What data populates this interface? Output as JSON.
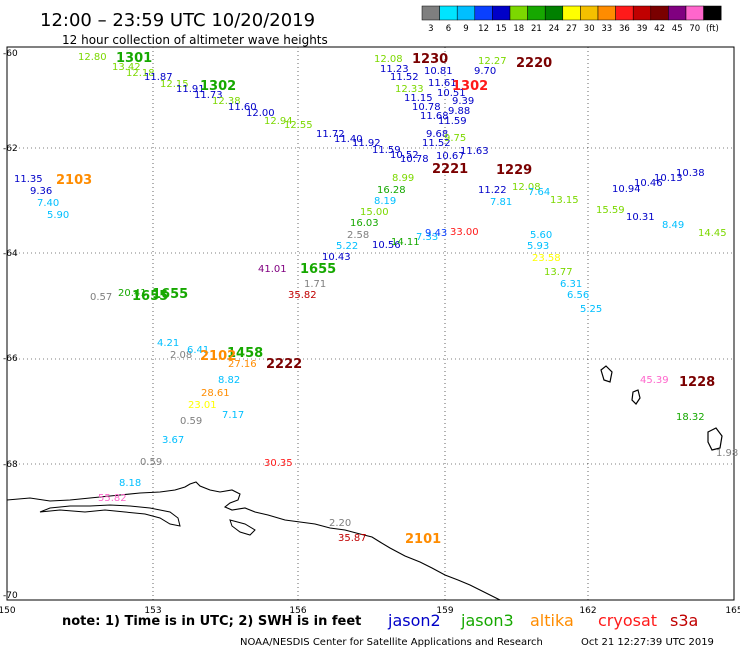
{
  "header": {
    "title": "12:00 – 23:59 UTC 10/20/2019",
    "subtitle": "12 hour collection of altimeter wave heights"
  },
  "colorbar": {
    "labels": [
      "3",
      "6",
      "9",
      "12",
      "15",
      "18",
      "21",
      "24",
      "27",
      "30",
      "33",
      "36",
      "39",
      "42",
      "45",
      "70",
      "(ft)"
    ],
    "colors": [
      "#7f7f7f",
      "#00e5ff",
      "#00bfff",
      "#0a40ff",
      "#0000c8",
      "#7cd800",
      "#16a800",
      "#008000",
      "#ffff00",
      "#f4c000",
      "#ff8c00",
      "#ff1a1a",
      "#c00000",
      "#7a0000",
      "#800080",
      "#ff66cc",
      "#000000"
    ]
  },
  "map": {
    "lon_ticks": [
      "150",
      "153",
      "156",
      "159",
      "162",
      "165"
    ],
    "lat_ticks": [
      "-60",
      "-62",
      "-64",
      "-66",
      "-68",
      "-70"
    ]
  },
  "observations": [
    {
      "t": "12.80",
      "c": "#7cd800"
    },
    {
      "t": "13.42",
      "c": "#7cd800"
    },
    {
      "t": "12.18",
      "c": "#7cd800"
    },
    {
      "t": "11.87",
      "c": "#0000c8"
    },
    {
      "t": "12.15",
      "c": "#7cd800"
    },
    {
      "t": "11.91",
      "c": "#0000c8"
    },
    {
      "t": "11.73",
      "c": "#0000c8"
    },
    {
      "t": "12.38",
      "c": "#7cd800"
    },
    {
      "t": "11.60",
      "c": "#0000c8"
    },
    {
      "t": "12.00",
      "c": "#0000c8"
    },
    {
      "t": "12.94",
      "c": "#7cd800"
    },
    {
      "t": "12.55",
      "c": "#7cd800"
    },
    {
      "t": "11.72",
      "c": "#0000c8"
    },
    {
      "t": "11.40",
      "c": "#0000c8"
    },
    {
      "t": "11.92",
      "c": "#0000c8"
    },
    {
      "t": "11.59",
      "c": "#0000c8"
    },
    {
      "t": "10.52",
      "c": "#0000c8"
    },
    {
      "t": "10.78",
      "c": "#0000c8"
    },
    {
      "t": "12.08",
      "c": "#7cd800"
    },
    {
      "t": "11.23",
      "c": "#0000c8"
    },
    {
      "t": "11.52",
      "c": "#0000c8"
    },
    {
      "t": "12.33",
      "c": "#7cd800"
    },
    {
      "t": "11.15",
      "c": "#0000c8"
    },
    {
      "t": "10.78",
      "c": "#0000c8"
    },
    {
      "t": "11.68",
      "c": "#0000c8"
    },
    {
      "t": "9.68",
      "c": "#0000c8"
    },
    {
      "t": "11.52",
      "c": "#0000c8"
    },
    {
      "t": "10.81",
      "c": "#0000c8"
    },
    {
      "t": "11.61",
      "c": "#0000c8"
    },
    {
      "t": "10.51",
      "c": "#0000c8"
    },
    {
      "t": "9.39",
      "c": "#0000c8"
    },
    {
      "t": "9.88",
      "c": "#0000c8"
    },
    {
      "t": "11.59",
      "c": "#0000c8"
    },
    {
      "t": "9.75",
      "c": "#7cd800"
    },
    {
      "t": "11.63",
      "c": "#0000c8"
    },
    {
      "t": "12.27",
      "c": "#7cd800"
    },
    {
      "t": "9.70",
      "c": "#0000c8"
    },
    {
      "t": "10.67",
      "c": "#0000c8"
    },
    {
      "t": "11.35",
      "c": "#0000c8"
    },
    {
      "t": "9.36",
      "c": "#0000c8"
    },
    {
      "t": "7.40",
      "c": "#00bfff"
    },
    {
      "t": "5.90",
      "c": "#00bfff"
    },
    {
      "t": "8.99",
      "c": "#7cd800"
    },
    {
      "t": "16.28",
      "c": "#16a800"
    },
    {
      "t": "8.19",
      "c": "#00bfff"
    },
    {
      "t": "15.00",
      "c": "#7cd800"
    },
    {
      "t": "16.03",
      "c": "#16a800"
    },
    {
      "t": "2.58",
      "c": "#7f7f7f"
    },
    {
      "t": "5.22",
      "c": "#00bfff"
    },
    {
      "t": "10.43",
      "c": "#0000c8"
    },
    {
      "t": "10.56",
      "c": "#0000c8"
    },
    {
      "t": "14.11",
      "c": "#16a800"
    },
    {
      "t": "7.33",
      "c": "#00bfff"
    },
    {
      "t": "9.43",
      "c": "#0a40ff"
    },
    {
      "t": "33.00",
      "c": "#ff1a1a"
    },
    {
      "t": "11.22",
      "c": "#0000c8"
    },
    {
      "t": "7.81",
      "c": "#00bfff"
    },
    {
      "t": "12.08",
      "c": "#7cd800"
    },
    {
      "t": "7.64",
      "c": "#00bfff"
    },
    {
      "t": "5.60",
      "c": "#00bfff"
    },
    {
      "t": "5.93",
      "c": "#00bfff"
    },
    {
      "t": "23.58",
      "c": "#ffff00"
    },
    {
      "t": "13.77",
      "c": "#7cd800"
    },
    {
      "t": "6.31",
      "c": "#00bfff"
    },
    {
      "t": "6.56",
      "c": "#00bfff"
    },
    {
      "t": "5.25",
      "c": "#00bfff"
    },
    {
      "t": "13.15",
      "c": "#7cd800"
    },
    {
      "t": "15.59",
      "c": "#7cd800"
    },
    {
      "t": "10.31",
      "c": "#0000c8"
    },
    {
      "t": "8.49",
      "c": "#00bfff"
    },
    {
      "t": "14.45",
      "c": "#7cd800"
    },
    {
      "t": "10.94",
      "c": "#0000c8"
    },
    {
      "t": "10.46",
      "c": "#0000c8"
    },
    {
      "t": "10.13",
      "c": "#0000c8"
    },
    {
      "t": "10.38",
      "c": "#0000c8"
    },
    {
      "t": "41.01",
      "c": "#800080"
    },
    {
      "t": "35.82",
      "c": "#c00000"
    },
    {
      "t": "1.71",
      "c": "#7f7f7f"
    },
    {
      "t": "0.57",
      "c": "#7f7f7f"
    },
    {
      "t": "20.41",
      "c": "#16a800"
    },
    {
      "t": "4.21",
      "c": "#00bfff"
    },
    {
      "t": "2.08",
      "c": "#7f7f7f"
    },
    {
      "t": "6.41",
      "c": "#00bfff"
    },
    {
      "t": "27.16",
      "c": "#ff8c00"
    },
    {
      "t": "8.82",
      "c": "#00bfff"
    },
    {
      "t": "28.61",
      "c": "#ff8c00"
    },
    {
      "t": "23.01",
      "c": "#ffff00"
    },
    {
      "t": "0.59",
      "c": "#7f7f7f"
    },
    {
      "t": "7.17",
      "c": "#00bfff"
    },
    {
      "t": "3.67",
      "c": "#00bfff"
    },
    {
      "t": "0.59",
      "c": "#7f7f7f"
    },
    {
      "t": "30.35",
      "c": "#ff1a1a"
    },
    {
      "t": "8.18",
      "c": "#00bfff"
    },
    {
      "t": "55.82",
      "c": "#ff66cc"
    },
    {
      "t": "2.20",
      "c": "#7f7f7f"
    },
    {
      "t": "35.87",
      "c": "#c00000"
    },
    {
      "t": "45.39",
      "c": "#ff66cc"
    },
    {
      "t": "18.32",
      "c": "#16a800"
    },
    {
      "t": "1.98",
      "c": "#7f7f7f"
    }
  ],
  "time_stamps": [
    {
      "t": "1301",
      "c": "#16a800"
    },
    {
      "t": "1302",
      "c": "#16a800"
    },
    {
      "t": "1230",
      "c": "#7a0000"
    },
    {
      "t": "2220",
      "c": "#7a0000"
    },
    {
      "t": "1302",
      "c": "#ff1a1a"
    },
    {
      "t": "2103",
      "c": "#ff8c00"
    },
    {
      "t": "2221",
      "c": "#7a0000"
    },
    {
      "t": "1229",
      "c": "#7a0000"
    },
    {
      "t": "1655",
      "c": "#16a800"
    },
    {
      "t": "1655",
      "c": "#16a800"
    },
    {
      "t": "1655",
      "c": "#16a800"
    },
    {
      "t": "1458",
      "c": "#16a800"
    },
    {
      "t": "2102",
      "c": "#ff8c00"
    },
    {
      "t": "2222",
      "c": "#7a0000"
    },
    {
      "t": "1228",
      "c": "#7a0000"
    },
    {
      "t": "2101",
      "c": "#ff8c00"
    }
  ],
  "footer": {
    "note": "note: 1) Time is in UTC; 2) SWH is in feet",
    "legend": [
      {
        "name": "jason2",
        "c": "#0000c8"
      },
      {
        "name": "jason3",
        "c": "#16a800"
      },
      {
        "name": "altika",
        "c": "#ff8c00"
      },
      {
        "name": "cryosat",
        "c": "#ff1a1a"
      },
      {
        "name": "s3a",
        "c": "#c00000"
      }
    ],
    "credit": "NOAA/NESDIS Center for Satellite Applications and Research",
    "timestamp": "Oct 21 12:27:39 UTC 2019"
  }
}
